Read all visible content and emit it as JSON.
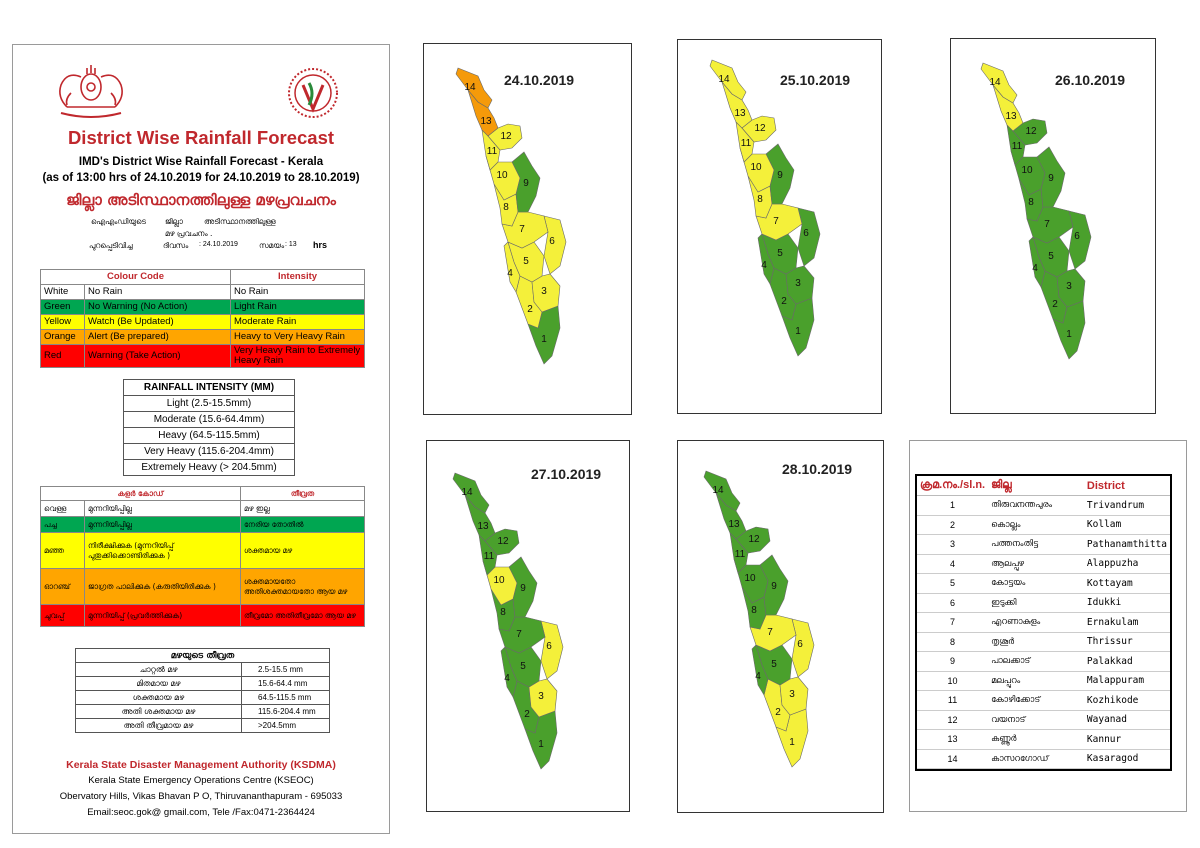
{
  "header": {
    "title": "District Wise Rainfall Forecast",
    "subtitle1": "IMD's District Wise Rainfall Forecast - Kerala",
    "subtitle2": "(as of 13:00 hrs of 24.10.2019  for 24.10.2019 to 28.10.2019)",
    "title_ml": "ജില്ലാ അടിസ്ഥാനത്തിലുള്ള മഴപ്രവചനം",
    "ml_line1a": "ഐഎംഡിയുടെ",
    "ml_line1b": "ജില്ലാ",
    "ml_line1c": "അടിസ്ഥാനത്തിലുള്ള",
    "ml_line2": "മഴ പ്രവചനം     .",
    "ml_line3a": "പുറപ്പെടിവിച്ച",
    "ml_line3b": "ദിവസം",
    "ml_line3c": ":  24.10.2019",
    "ml_line3d": "സമയം",
    "ml_line3e": ":  13",
    "ml_line3f": "hrs"
  },
  "colors": {
    "white": "#ffffff",
    "green": "#00a651",
    "yellow": "#ffff00",
    "orange": "#ffa500",
    "red": "#ff0000",
    "map_green": "#4aa02c",
    "map_yellow": "#f4f03a",
    "map_orange": "#f59a0a",
    "title_red": "#c0282d"
  },
  "colour_code": {
    "header_code": "Colour Code",
    "header_intensity": "Intensity",
    "rows": [
      {
        "color_key": "white",
        "colour": "White",
        "meaning": "No Rain",
        "intensity": "No Rain"
      },
      {
        "color_key": "green",
        "colour": "Green",
        "meaning": "No Warning (No Action)",
        "intensity": "Light Rain"
      },
      {
        "color_key": "yellow",
        "colour": "Yellow",
        "meaning": "Watch (Be Updated)",
        "intensity": "Moderate Rain"
      },
      {
        "color_key": "orange",
        "colour": "Orange",
        "meaning": "Alert (Be prepared)",
        "intensity": "Heavy to Very Heavy Rain"
      },
      {
        "color_key": "red",
        "colour": "Red",
        "meaning": "Warning (Take Action)",
        "intensity": "Very Heavy Rain to Extremely Heavy Rain"
      }
    ]
  },
  "rainfall_intensity": {
    "header": "RAINFALL INTENSITY (MM)",
    "rows": [
      "Light (2.5-15.5mm)",
      "Moderate (15.6-64.4mm)",
      "Heavy (64.5-115.5mm)",
      "Very Heavy (115.6-204.4mm)",
      "Extremely Heavy (> 204.5mm)"
    ]
  },
  "colour_code_ml": {
    "header_code": "കളർ കോഡ്",
    "header_intensity": "തീവ്രത",
    "rows": [
      {
        "color_key": "white",
        "colour": "വെള്ള",
        "meaning": "മുന്നറിയിപ്പില്ല",
        "intensity": "മഴ ഇല്ല"
      },
      {
        "color_key": "green",
        "colour": "പച്ച",
        "meaning": "മുന്നറിയിപ്പില്ല",
        "intensity": "നേരിയ തോതിൽ"
      },
      {
        "color_key": "yellow",
        "colour": "മഞ്ഞ",
        "meaning": "നിരീക്ഷിക്കുക (മുന്നറിയിപ്പ് പുതുക്കിക്കൊണ്ടിരിക്കുക )",
        "intensity": "ശക്തമായ മഴ"
      },
      {
        "color_key": "orange",
        "colour": "ഓറഞ്ച്",
        "meaning": "ജാഗ്രത പാലിക്കുക (കരുതിയിരിക്കുക )",
        "intensity": "ശക്തമായതോ അതിശക്തമായതോ ആയ മഴ"
      },
      {
        "color_key": "red",
        "colour": "ചുവപ്പ്",
        "meaning": "മുന്നറിയിപ്പ് (പ്രവർത്തിക്കുക)",
        "intensity": "തീവ്രമോ അതിതീവ്രമോ ആയ മഴ"
      }
    ]
  },
  "intensity_ml": {
    "header": "മഴയുടെ തീവ്രത",
    "rows": [
      {
        "label": "ചാറ്റൽ മഴ",
        "value": "2.5-15.5 mm"
      },
      {
        "label": "മിതമായ മഴ",
        "value": "15.6-64.4 mm"
      },
      {
        "label": "ശക്തമായ മഴ",
        "value": "64.5-115.5 mm"
      },
      {
        "label": "അതി ശക്തമായ മഴ",
        "value": "115.6-204.4 mm"
      },
      {
        "label": "അതി തീവ്രമായ മഴ",
        "value": ">204.5mm"
      }
    ]
  },
  "footer": {
    "org": "Kerala State Disaster Management Authority (KSDMA)",
    "centre": "Kerala State Emergency Operations Centre (KSEOC)",
    "address": "Obervatory Hills, Vikas Bhavan P O, Thiruvananthapuram - 695033",
    "contact": "Email:seoc.gok@ gmail.com, Tele /Fax:0471-2364424"
  },
  "maps": [
    {
      "date": "24.10.2019",
      "districts": {
        "1": "green",
        "2": "yellow",
        "3": "yellow",
        "4": "yellow",
        "5": "yellow",
        "6": "yellow",
        "7": "yellow",
        "8": "yellow",
        "9": "green",
        "10": "yellow",
        "11": "yellow",
        "12": "yellow",
        "13": "orange",
        "14": "orange"
      }
    },
    {
      "date": "25.10.2019",
      "districts": {
        "1": "green",
        "2": "green",
        "3": "green",
        "4": "green",
        "5": "green",
        "6": "green",
        "7": "yellow",
        "8": "yellow",
        "9": "green",
        "10": "yellow",
        "11": "yellow",
        "12": "yellow",
        "13": "yellow",
        "14": "yellow"
      }
    },
    {
      "date": "26.10.2019",
      "districts": {
        "1": "green",
        "2": "green",
        "3": "green",
        "4": "green",
        "5": "green",
        "6": "green",
        "7": "green",
        "8": "green",
        "9": "green",
        "10": "green",
        "11": "green",
        "12": "green",
        "13": "yellow",
        "14": "yellow"
      }
    },
    {
      "date": "27.10.2019",
      "districts": {
        "1": "green",
        "2": "green",
        "3": "yellow",
        "4": "green",
        "5": "green",
        "6": "yellow",
        "7": "green",
        "8": "green",
        "9": "green",
        "10": "yellow",
        "11": "green",
        "12": "green",
        "13": "green",
        "14": "green"
      }
    },
    {
      "date": "28.10.2019",
      "districts": {
        "1": "yellow",
        "2": "yellow",
        "3": "yellow",
        "4": "green",
        "5": "green",
        "6": "yellow",
        "7": "yellow",
        "8": "green",
        "9": "green",
        "10": "green",
        "11": "green",
        "12": "green",
        "13": "green",
        "14": "green"
      }
    }
  ],
  "district_list": {
    "header_no": "ക്രമ.നം./sl.n.",
    "header_ml": "ജില്ല",
    "header_en": "District",
    "rows": [
      {
        "no": "1",
        "ml": "തിരുവനന്തപുരം",
        "en": "Trivandrum"
      },
      {
        "no": "2",
        "ml": "കൊല്ലം",
        "en": "Kollam"
      },
      {
        "no": "3",
        "ml": "പത്തനംതിട്ട",
        "en": "Pathanamthitta"
      },
      {
        "no": "4",
        "ml": "ആലപ്പുഴ",
        "en": "Alappuzha"
      },
      {
        "no": "5",
        "ml": "കോട്ടയം",
        "en": "Kottayam"
      },
      {
        "no": "6",
        "ml": "ഇടുക്കി",
        "en": "Idukki"
      },
      {
        "no": "7",
        "ml": "എറണാകുളം",
        "en": "Ernakulam"
      },
      {
        "no": "8",
        "ml": "തൃശൂർ",
        "en": "Thrissur"
      },
      {
        "no": "9",
        "ml": "പാലക്കാട്",
        "en": "Palakkad"
      },
      {
        "no": "10",
        "ml": "മലപ്പുറം",
        "en": "Malappuram"
      },
      {
        "no": "11",
        "ml": "കോഴിക്കോട്",
        "en": "Kozhikode"
      },
      {
        "no": "12",
        "ml": "വയനാട്",
        "en": "Wayanad"
      },
      {
        "no": "13",
        "ml": "കണ്ണൂർ",
        "en": "Kannur"
      },
      {
        "no": "14",
        "ml": "കാസറഗോഡ്",
        "en": "Kasaragod"
      }
    ]
  }
}
